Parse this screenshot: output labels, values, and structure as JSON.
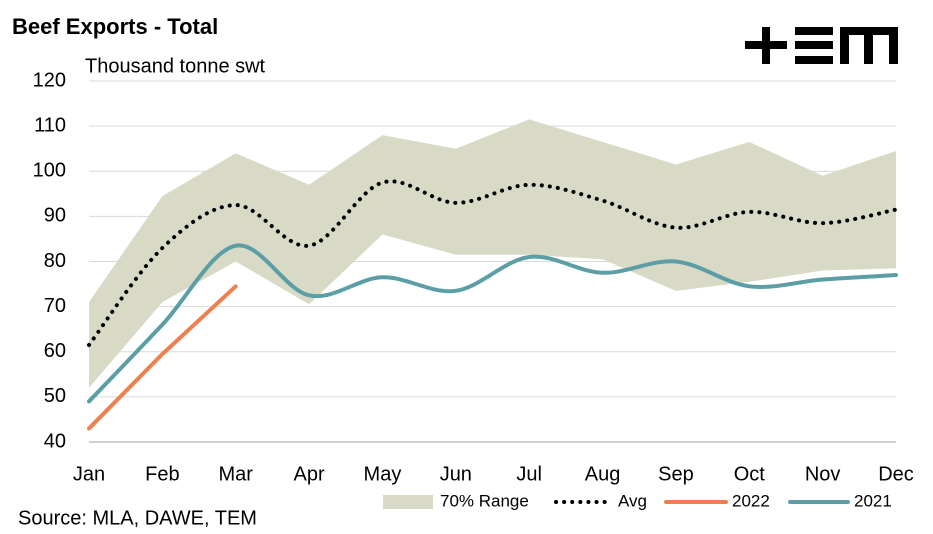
{
  "chart_data": {
    "type": "line",
    "title": "Beef Exports - Total",
    "y_label": "Thousand tonne swt",
    "source": "Source: MLA, DAWE, TEM",
    "categories": [
      "Jan",
      "Feb",
      "Mar",
      "Apr",
      "May",
      "Jun",
      "Jul",
      "Aug",
      "Sep",
      "Oct",
      "Nov",
      "Dec"
    ],
    "ylim": [
      40,
      120
    ],
    "yticks": [
      40,
      50,
      60,
      70,
      80,
      90,
      100,
      110,
      120
    ],
    "grid": true,
    "legend": "bottom",
    "range": {
      "name": "70% Range",
      "color": "#d9dac6",
      "lower": [
        52,
        71,
        80,
        70.5,
        86,
        81.5,
        81.5,
        80.5,
        73.5,
        75.5,
        78,
        78.5
      ],
      "upper": [
        71,
        94.5,
        104,
        97,
        108,
        105,
        111.5,
        106.5,
        101.5,
        106.5,
        99,
        104.5
      ]
    },
    "series": [
      {
        "name": "Avg",
        "color": "#000000",
        "style": "dotted",
        "values": [
          61.5,
          83,
          92.5,
          83.5,
          97.5,
          93,
          97,
          93.5,
          87.5,
          91,
          88.5,
          91.5
        ]
      },
      {
        "name": "2022",
        "color": "#f07f4f",
        "style": "straight",
        "values": [
          43,
          59.5,
          74.5,
          null,
          null,
          null,
          null,
          null,
          null,
          null,
          null,
          null
        ]
      },
      {
        "name": "2021",
        "color": "#5b9ea6",
        "style": "smooth",
        "values": [
          49,
          66,
          83.5,
          72.5,
          76.5,
          73.5,
          81,
          77.5,
          80,
          74.5,
          76,
          77
        ]
      }
    ]
  }
}
